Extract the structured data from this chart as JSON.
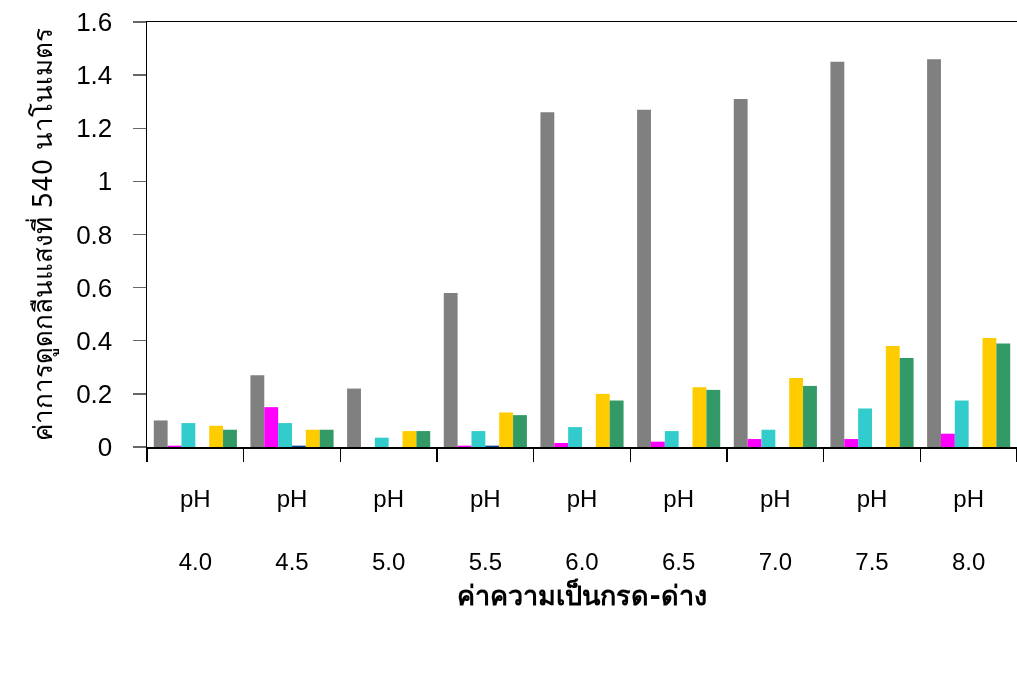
{
  "chart_data": {
    "type": "bar",
    "xlabel": "ค่าความเป็นกรด-ด่าง",
    "ylabel": "ค่าการดูดกลืนแสงที่ 540 นาโนเมตร",
    "categories": [
      "pH\n4.0",
      "pH\n4.5",
      "pH\n5.0",
      "pH\n5.5",
      "pH\n6.0",
      "pH\n6.5",
      "pH\n7.0",
      "pH\n7.5",
      "pH\n8.0"
    ],
    "series": [
      {
        "color": "#808080",
        "values": [
          0.1,
          0.27,
          0.22,
          0.58,
          1.26,
          1.27,
          1.31,
          1.45,
          1.46
        ]
      },
      {
        "color": "#ff00ff",
        "values": [
          0.005,
          0.15,
          null,
          0.005,
          0.015,
          0.02,
          0.03,
          0.03,
          0.05
        ]
      },
      {
        "color": "#33cccc",
        "values": [
          0.09,
          0.09,
          0.035,
          0.06,
          0.075,
          0.06,
          0.065,
          0.145,
          0.175
        ]
      },
      {
        "color": "#003f8f",
        "values": [
          null,
          0.005,
          null,
          0.005,
          null,
          null,
          null,
          null,
          null
        ]
      },
      {
        "color": "#ffcc00",
        "values": [
          0.08,
          0.065,
          0.06,
          0.13,
          0.2,
          0.225,
          0.26,
          0.38,
          0.41
        ]
      },
      {
        "color": "#339966",
        "values": [
          0.065,
          0.065,
          0.06,
          0.12,
          0.175,
          0.215,
          0.23,
          0.335,
          0.39
        ]
      }
    ],
    "ylim": [
      0,
      1.6
    ],
    "yticks": [
      0,
      0.2,
      0.4,
      0.6,
      0.8,
      1,
      1.2,
      1.4,
      1.6
    ]
  }
}
